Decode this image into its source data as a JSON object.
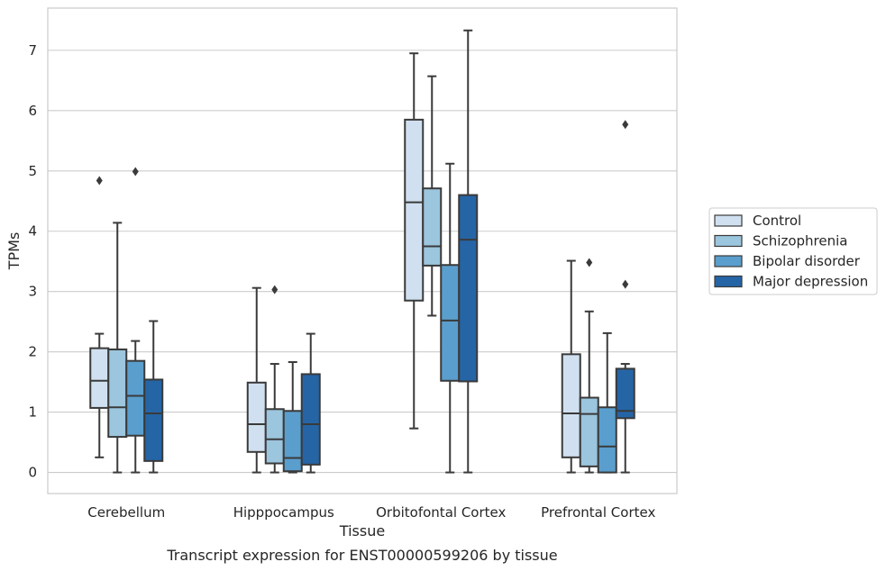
{
  "chart_data": {
    "type": "boxplot",
    "caption": "Transcript expression for ENST00000599206 by tissue",
    "xlabel": "Tissue",
    "ylabel": "TPMs",
    "ylim": [
      -0.35,
      7.7
    ],
    "yticks": [
      0,
      1,
      2,
      3,
      4,
      5,
      6,
      7
    ],
    "grid": "horizontal",
    "legend_position": "right",
    "categories": [
      "Cerebellum",
      "Hipppocampus",
      "Orbitofontal Cortex",
      "Prefrontal Cortex"
    ],
    "series": [
      {
        "name": "Control",
        "color": "#d0e0f0",
        "boxes": [
          {
            "whislo": 0.25,
            "q1": 1.07,
            "med": 1.52,
            "q3": 2.06,
            "whishi": 2.3,
            "fliers": [
              4.84
            ]
          },
          {
            "whislo": 0.0,
            "q1": 0.34,
            "med": 0.8,
            "q3": 1.49,
            "whishi": 3.06,
            "fliers": []
          },
          {
            "whislo": 0.73,
            "q1": 2.85,
            "med": 4.48,
            "q3": 5.85,
            "whishi": 6.95,
            "fliers": []
          },
          {
            "whislo": 0.0,
            "q1": 0.25,
            "med": 0.98,
            "q3": 1.96,
            "whishi": 3.51,
            "fliers": []
          }
        ]
      },
      {
        "name": "Schizophrenia",
        "color": "#9cc5de",
        "boxes": [
          {
            "whislo": 0.0,
            "q1": 0.59,
            "med": 1.08,
            "q3": 2.04,
            "whishi": 4.14,
            "fliers": []
          },
          {
            "whislo": 0.0,
            "q1": 0.15,
            "med": 0.55,
            "q3": 1.05,
            "whishi": 1.8,
            "fliers": [
              3.03
            ]
          },
          {
            "whislo": 2.6,
            "q1": 3.43,
            "med": 3.75,
            "q3": 4.71,
            "whishi": 6.57,
            "fliers": []
          },
          {
            "whislo": 0.0,
            "q1": 0.1,
            "med": 0.97,
            "q3": 1.24,
            "whishi": 2.67,
            "fliers": [
              3.48
            ]
          }
        ]
      },
      {
        "name": "Bipolar disorder",
        "color": "#5a9ecd",
        "boxes": [
          {
            "whislo": 0.0,
            "q1": 0.61,
            "med": 1.27,
            "q3": 1.85,
            "whishi": 2.18,
            "fliers": [
              4.99
            ]
          },
          {
            "whislo": 0.0,
            "q1": 0.02,
            "med": 0.24,
            "q3": 1.02,
            "whishi": 1.83,
            "fliers": []
          },
          {
            "whislo": 0.0,
            "q1": 1.52,
            "med": 2.52,
            "q3": 3.44,
            "whishi": 5.12,
            "fliers": []
          },
          {
            "whislo": 0.0,
            "q1": 0.0,
            "med": 0.43,
            "q3": 1.08,
            "whishi": 2.31,
            "fliers": []
          }
        ]
      },
      {
        "name": "Major depression",
        "color": "#2565a6",
        "boxes": [
          {
            "whislo": 0.0,
            "q1": 0.19,
            "med": 0.98,
            "q3": 1.54,
            "whishi": 2.51,
            "fliers": []
          },
          {
            "whislo": 0.0,
            "q1": 0.13,
            "med": 0.8,
            "q3": 1.63,
            "whishi": 2.3,
            "fliers": []
          },
          {
            "whislo": 0.0,
            "q1": 1.51,
            "med": 3.86,
            "q3": 4.6,
            "whishi": 7.33,
            "fliers": []
          },
          {
            "whislo": 0.0,
            "q1": 0.9,
            "med": 1.02,
            "q3": 1.72,
            "whishi": 1.8,
            "fliers": [
              3.12,
              5.77
            ]
          }
        ]
      }
    ]
  }
}
